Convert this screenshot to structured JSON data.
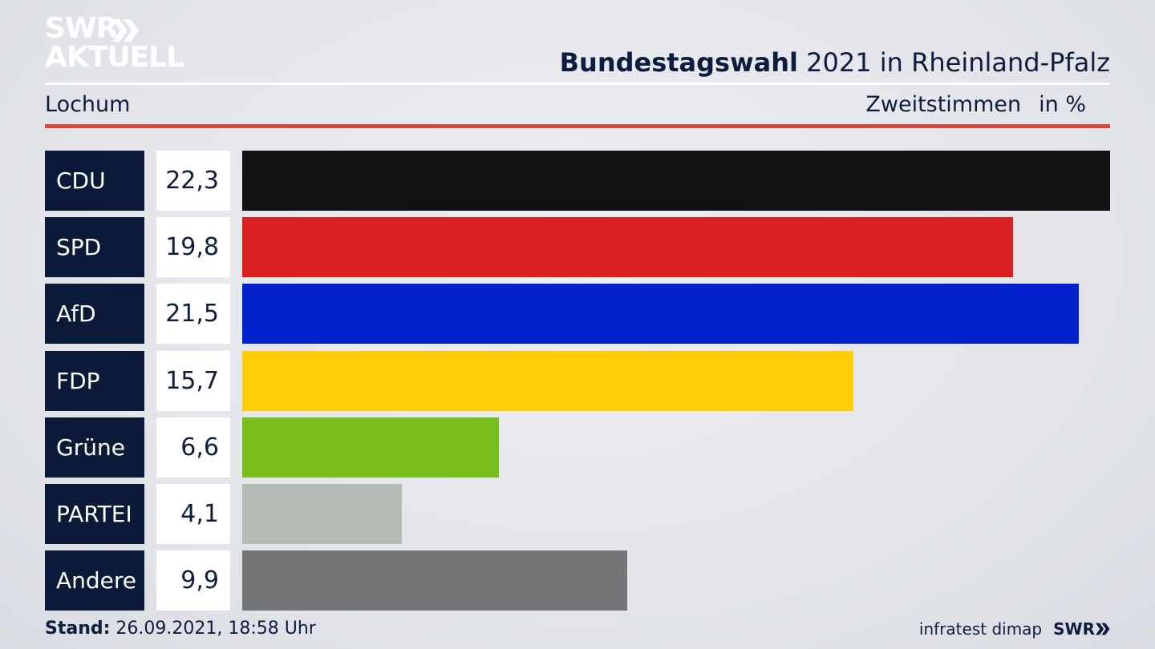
{
  "logo": {
    "line1": "SWR",
    "line2": "AKTUELL",
    "arrows_icon": "double-chevron-right-icon"
  },
  "header": {
    "title_bold": "Bundestagswahl",
    "title_rest": "2021 in Rheinland-Pfalz",
    "location": "Lochum",
    "measure": "Zweitstimmen",
    "unit": "in %"
  },
  "chart_data": {
    "type": "bar",
    "orientation": "horizontal",
    "categories": [
      "CDU",
      "SPD",
      "AfD",
      "FDP",
      "Grüne",
      "PARTEI",
      "Andere"
    ],
    "values": [
      22.3,
      19.8,
      21.5,
      15.7,
      6.6,
      4.1,
      9.9
    ],
    "value_labels": [
      "22,3",
      "19,8",
      "21,5",
      "15,7",
      "6,6",
      "4,1",
      "9,9"
    ],
    "colors": [
      "#121212",
      "#d92020",
      "#0021cc",
      "#ffcc0a",
      "#78be1e",
      "#b4bcb4",
      "#747577"
    ],
    "title": "Bundestagswahl 2021 in Rheinland-Pfalz",
    "xlim": [
      0,
      22.3
    ],
    "grid": false,
    "legend": "none"
  },
  "footer": {
    "stand_label": "Stand:",
    "stand_value": "26.09.2021, 18:58 Uhr",
    "source": "infratest dimap",
    "brand": "SWR"
  }
}
